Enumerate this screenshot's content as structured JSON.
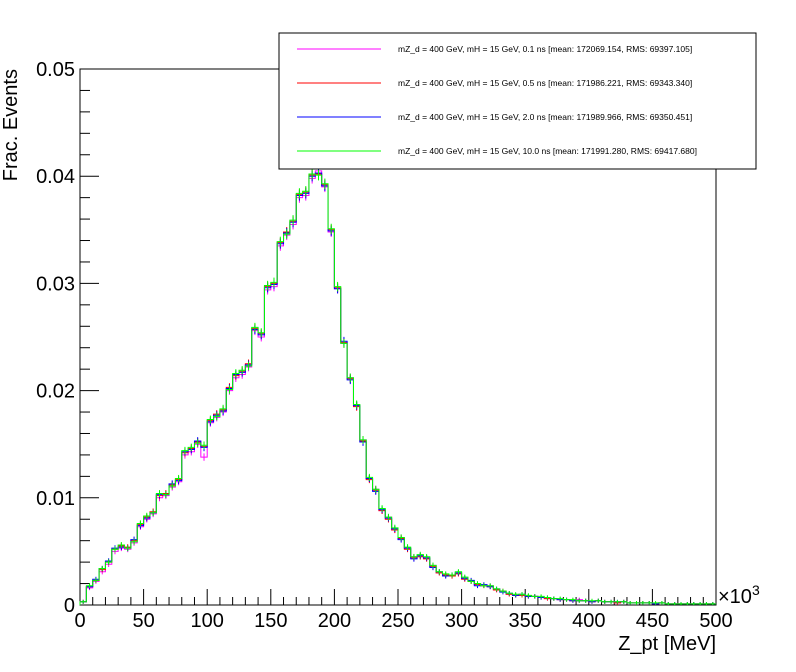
{
  "chart_data": {
    "type": "line",
    "style": "step-histogram-with-error-bars",
    "xlabel": "Z_pt [MeV]",
    "ylabel": "Frac. Events",
    "x_multiplier_label": "×10",
    "x_multiplier_exponent": "3",
    "xlim": [
      0,
      500
    ],
    "ylim": [
      0,
      0.05
    ],
    "x_tick_labels": [
      "0",
      "50",
      "100",
      "150",
      "200",
      "250",
      "300",
      "350",
      "400",
      "450",
      "500"
    ],
    "y_tick_labels": [
      "0",
      "0.01",
      "0.02",
      "0.03",
      "0.04",
      "0.05"
    ],
    "x_ticks": [
      0,
      50,
      100,
      150,
      200,
      250,
      300,
      350,
      400,
      450,
      500
    ],
    "y_ticks": [
      0,
      0.01,
      0.02,
      0.03,
      0.04,
      0.05
    ],
    "bin_width": 5,
    "grid": false,
    "legend_position": "top-right",
    "series": [
      {
        "name": "mZ_d = 400 GeV, mH = 15 GeV, 0.1 ns [mean: 172069.154, RMS: 69397.105]",
        "color": "#ff00ff",
        "values": [
          0.0003,
          0.0016,
          0.0022,
          0.0031,
          0.0038,
          0.005,
          0.0053,
          0.0052,
          0.0058,
          0.0073,
          0.008,
          0.0085,
          0.01,
          0.0102,
          0.011,
          0.0115,
          0.014,
          0.0143,
          0.015,
          0.0138,
          0.017,
          0.0175,
          0.018,
          0.02,
          0.0212,
          0.0215,
          0.0222,
          0.0256,
          0.025,
          0.0294,
          0.0297,
          0.0335,
          0.0345,
          0.0355,
          0.038,
          0.0382,
          0.0398,
          0.0405,
          0.039,
          0.0348,
          0.0295,
          0.0244,
          0.0212,
          0.0186,
          0.0154,
          0.0118,
          0.0108,
          0.0088,
          0.0082,
          0.007,
          0.0063,
          0.0053,
          0.0045,
          0.0046,
          0.0044,
          0.0037,
          0.003,
          0.0028,
          0.0027,
          0.003,
          0.0025,
          0.0022,
          0.0019,
          0.0018,
          0.0018,
          0.0014,
          0.0013,
          0.001,
          0.0009,
          0.0009,
          0.0008,
          0.0008,
          0.0007,
          0.0006,
          0.0006,
          0.0005,
          0.0005,
          0.0004,
          0.0005,
          0.0004,
          0.0003,
          0.0004,
          0.0003,
          0.0003,
          0.0002,
          0.0003,
          0.0002,
          0.0002,
          0.0002,
          0.0002,
          0.0001,
          0.0002,
          0.0001,
          0.0001,
          0.0001,
          0.0001,
          0.0001,
          0.0001,
          0.0001,
          0.0001
        ]
      },
      {
        "name": "mZ_d = 400 GeV, mH = 15 GeV, 0.5 ns [mean: 171986.221, RMS: 69343.340]",
        "color": "#ff0000",
        "values": [
          0.0003,
          0.0017,
          0.0023,
          0.0033,
          0.004,
          0.0052,
          0.0055,
          0.0054,
          0.006,
          0.0075,
          0.0082,
          0.0087,
          0.0102,
          0.0104,
          0.0112,
          0.0117,
          0.0142,
          0.0146,
          0.0152,
          0.0148,
          0.0172,
          0.0178,
          0.0182,
          0.0203,
          0.0214,
          0.0218,
          0.0225,
          0.0258,
          0.0253,
          0.0297,
          0.03,
          0.0338,
          0.0348,
          0.0358,
          0.0383,
          0.0385,
          0.0401,
          0.0402,
          0.0392,
          0.035,
          0.0296,
          0.0245,
          0.0211,
          0.0185,
          0.0153,
          0.0117,
          0.0107,
          0.0088,
          0.008,
          0.007,
          0.0062,
          0.0052,
          0.0044,
          0.0045,
          0.0043,
          0.0036,
          0.003,
          0.0028,
          0.0027,
          0.0029,
          0.0024,
          0.0022,
          0.0019,
          0.0018,
          0.0017,
          0.0014,
          0.0013,
          0.001,
          0.0009,
          0.0009,
          0.0008,
          0.0008,
          0.0007,
          0.0006,
          0.0006,
          0.0005,
          0.0005,
          0.0004,
          0.0004,
          0.0004,
          0.0003,
          0.0004,
          0.0003,
          0.0003,
          0.0002,
          0.0003,
          0.0002,
          0.0002,
          0.0002,
          0.0002,
          0.0001,
          0.0002,
          0.0001,
          0.0001,
          0.0001,
          0.0001,
          0.0001,
          0.0001,
          0.0001,
          0.0001
        ]
      },
      {
        "name": "mZ_d = 400 GeV, mH = 15 GeV, 2.0 ns [mean: 171989.966, RMS: 69350.451]",
        "color": "#0000ff",
        "values": [
          0.0003,
          0.0017,
          0.0024,
          0.0034,
          0.0041,
          0.0053,
          0.0054,
          0.0053,
          0.0061,
          0.0074,
          0.0081,
          0.0086,
          0.0103,
          0.0103,
          0.0113,
          0.0116,
          0.0143,
          0.0145,
          0.0153,
          0.0147,
          0.0171,
          0.0177,
          0.0181,
          0.0202,
          0.0215,
          0.0217,
          0.0224,
          0.0257,
          0.0252,
          0.0296,
          0.0299,
          0.0337,
          0.0347,
          0.0357,
          0.0382,
          0.0384,
          0.04,
          0.0403,
          0.0391,
          0.0349,
          0.0295,
          0.0246,
          0.021,
          0.0186,
          0.0152,
          0.0118,
          0.0106,
          0.0089,
          0.0081,
          0.0071,
          0.0061,
          0.0053,
          0.0043,
          0.0046,
          0.0044,
          0.0035,
          0.0031,
          0.0027,
          0.0028,
          0.003,
          0.0025,
          0.0023,
          0.0018,
          0.0019,
          0.0017,
          0.0015,
          0.0012,
          0.0011,
          0.0009,
          0.001,
          0.0008,
          0.0008,
          0.0007,
          0.0007,
          0.0006,
          0.0005,
          0.0005,
          0.0004,
          0.0004,
          0.0004,
          0.0003,
          0.0004,
          0.0003,
          0.0003,
          0.0003,
          0.0003,
          0.0002,
          0.0002,
          0.0002,
          0.0002,
          0.0001,
          0.0002,
          0.0001,
          0.0001,
          0.0001,
          0.0001,
          0.0001,
          0.0001,
          0.0001,
          0.0001
        ]
      },
      {
        "name": "mZ_d = 400 GeV, mH = 15 GeV, 10.0 ns [mean: 171991.280, RMS: 69417.680]",
        "color": "#00ff00",
        "values": [
          0.0003,
          0.0018,
          0.0023,
          0.0034,
          0.004,
          0.0052,
          0.0056,
          0.0053,
          0.0059,
          0.0076,
          0.0083,
          0.0086,
          0.0104,
          0.0103,
          0.0111,
          0.0118,
          0.0144,
          0.0147,
          0.0151,
          0.0149,
          0.0173,
          0.0176,
          0.0183,
          0.0201,
          0.0216,
          0.0219,
          0.0223,
          0.0259,
          0.0254,
          0.0298,
          0.0301,
          0.0339,
          0.0346,
          0.0359,
          0.0384,
          0.0386,
          0.0402,
          0.0401,
          0.0393,
          0.0351,
          0.0297,
          0.0244,
          0.0212,
          0.0187,
          0.0154,
          0.0119,
          0.0108,
          0.009,
          0.0082,
          0.0072,
          0.0063,
          0.0054,
          0.0045,
          0.0047,
          0.0045,
          0.0037,
          0.0031,
          0.0029,
          0.0028,
          0.0031,
          0.0026,
          0.0022,
          0.002,
          0.0018,
          0.0018,
          0.0015,
          0.0013,
          0.0011,
          0.001,
          0.001,
          0.0009,
          0.0008,
          0.0008,
          0.0007,
          0.0006,
          0.0006,
          0.0005,
          0.0005,
          0.0004,
          0.0004,
          0.0004,
          0.0004,
          0.0003,
          0.0003,
          0.0003,
          0.0003,
          0.0002,
          0.0002,
          0.0002,
          0.0002,
          0.0002,
          0.0002,
          0.0001,
          0.0001,
          0.0001,
          0.0001,
          0.0001,
          0.0001,
          0.0001,
          0.0001
        ]
      }
    ]
  }
}
